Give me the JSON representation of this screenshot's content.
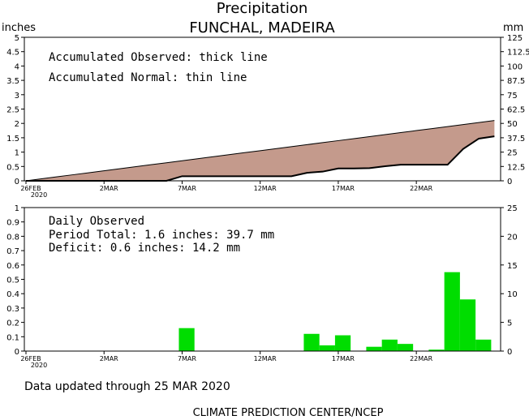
{
  "title": "Precipitation",
  "subtitle": "FUNCHAL, MADEIRA",
  "unit_left": "inches",
  "unit_right": "mm",
  "footer_updated": "Data updated through 25 MAR 2020",
  "footer_credit": "CLIMATE PREDICTION CENTER/NCEP",
  "chart_data": [
    {
      "type": "area",
      "annotations": [
        "Accumulated Observed: thick line",
        "Accumulated Normal: thin line"
      ],
      "x_ticks": [
        "26FEB",
        "2MAR",
        "7MAR",
        "12MAR",
        "17MAR",
        "22MAR"
      ],
      "x_tick_index": [
        0,
        5,
        10,
        15,
        20,
        25
      ],
      "x_tick_year": "2020",
      "ylim_inches": [
        0,
        5
      ],
      "yticks_left": [
        "0",
        "0.5",
        "1",
        "1.5",
        "2",
        "2.5",
        "3",
        "3.5",
        "4",
        "4.5",
        "5"
      ],
      "ylim_mm": [
        0,
        125
      ],
      "yticks_right": [
        "0",
        "12.5",
        "25",
        "37.5",
        "50",
        "62.5",
        "75",
        "87.5",
        "100",
        "112.5",
        "125"
      ],
      "days": 30,
      "series": [
        {
          "values": [
            0,
            0.07,
            0.14,
            0.21,
            0.28,
            0.35,
            0.42,
            0.49,
            0.56,
            0.63,
            0.7,
            0.77,
            0.84,
            0.91,
            0.98,
            1.05,
            1.12,
            1.19,
            1.26,
            1.33,
            1.4,
            1.47,
            1.54,
            1.61,
            1.68,
            1.75,
            1.82,
            1.89,
            1.96,
            2.03,
            2.1
          ]
        },
        {
          "values": [
            0,
            0,
            0,
            0,
            0,
            0,
            0,
            0,
            0,
            0,
            0.16,
            0.16,
            0.16,
            0.16,
            0.16,
            0.16,
            0.16,
            0.16,
            0.28,
            0.32,
            0.43,
            0.43,
            0.44,
            0.51,
            0.56,
            0.56,
            0.56,
            0.56,
            1.11,
            1.47,
            1.55
          ]
        }
      ],
      "fill_color": "#c49a8c"
    },
    {
      "type": "bar",
      "annotations": [
        "Daily Observed",
        "Period Total:     1.6 inches:     39.7 mm",
        "Deficit:     0.6 inches:    14.2 mm"
      ],
      "x_ticks": [
        "26FEB",
        "2MAR",
        "7MAR",
        "12MAR",
        "17MAR",
        "22MAR"
      ],
      "x_tick_index": [
        0,
        5,
        10,
        15,
        20,
        25
      ],
      "x_tick_year": "2020",
      "ylim_inches": [
        0,
        1
      ],
      "yticks_left": [
        "0",
        "0.1",
        "0.2",
        "0.3",
        "0.4",
        "0.5",
        "0.6",
        "0.7",
        "0.8",
        "0.9",
        "1"
      ],
      "ylim_mm": [
        0,
        25
      ],
      "yticks_right": [
        "0",
        "5",
        "10",
        "15",
        "20",
        "25"
      ],
      "bar_color": "#00dd00",
      "bars": [
        {
          "day": 10,
          "value": 0.16
        },
        {
          "day": 18,
          "value": 0.12
        },
        {
          "day": 19,
          "value": 0.04
        },
        {
          "day": 20,
          "value": 0.11
        },
        {
          "day": 22,
          "value": 0.03
        },
        {
          "day": 23,
          "value": 0.08
        },
        {
          "day": 24,
          "value": 0.05
        },
        {
          "day": 26,
          "value": 0.01
        },
        {
          "day": 27,
          "value": 0.55
        },
        {
          "day": 28,
          "value": 0.36
        },
        {
          "day": 29,
          "value": 0.08
        }
      ]
    }
  ]
}
